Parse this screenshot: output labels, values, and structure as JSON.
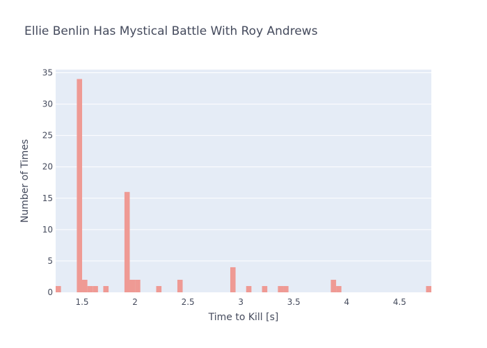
{
  "chart_data": {
    "type": "bar",
    "title": "Ellie Benlin Has Mystical Battle With Roy Andrews",
    "xlabel": "Time to Kill [s]",
    "ylabel": "Number of Times",
    "xlim": [
      1.25,
      4.8
    ],
    "ylim": [
      0,
      35.5
    ],
    "bin_width": 0.05,
    "x_ticks": [
      1.5,
      2,
      2.5,
      3,
      3.5,
      4,
      4.5
    ],
    "x_tick_labels": [
      "1.5",
      "2",
      "2.5",
      "3",
      "3.5",
      "4",
      "4.5"
    ],
    "y_ticks": [
      0,
      5,
      10,
      15,
      20,
      25,
      30,
      35
    ],
    "y_tick_labels": [
      "0",
      "5",
      "10",
      "15",
      "20",
      "25",
      "30",
      "35"
    ],
    "grid": true,
    "colors": {
      "bar": "#ef9a94",
      "plot_bg": "#e5ecf6",
      "grid": "#ffffff",
      "text": "#444a5c"
    },
    "bins": [
      {
        "x0": 1.25,
        "x1": 1.3,
        "count": 1
      },
      {
        "x0": 1.45,
        "x1": 1.5,
        "count": 34
      },
      {
        "x0": 1.5,
        "x1": 1.55,
        "count": 2
      },
      {
        "x0": 1.55,
        "x1": 1.6,
        "count": 1
      },
      {
        "x0": 1.6,
        "x1": 1.65,
        "count": 1
      },
      {
        "x0": 1.7,
        "x1": 1.75,
        "count": 1
      },
      {
        "x0": 1.9,
        "x1": 1.95,
        "count": 16
      },
      {
        "x0": 1.95,
        "x1": 2.0,
        "count": 2
      },
      {
        "x0": 2.0,
        "x1": 2.05,
        "count": 2
      },
      {
        "x0": 2.2,
        "x1": 2.25,
        "count": 1
      },
      {
        "x0": 2.4,
        "x1": 2.45,
        "count": 2
      },
      {
        "x0": 2.9,
        "x1": 2.95,
        "count": 4
      },
      {
        "x0": 3.05,
        "x1": 3.1,
        "count": 1
      },
      {
        "x0": 3.2,
        "x1": 3.25,
        "count": 1
      },
      {
        "x0": 3.35,
        "x1": 3.4,
        "count": 1
      },
      {
        "x0": 3.4,
        "x1": 3.45,
        "count": 1
      },
      {
        "x0": 3.85,
        "x1": 3.9,
        "count": 2
      },
      {
        "x0": 3.9,
        "x1": 3.95,
        "count": 1
      },
      {
        "x0": 4.75,
        "x1": 4.8,
        "count": 1
      }
    ]
  }
}
